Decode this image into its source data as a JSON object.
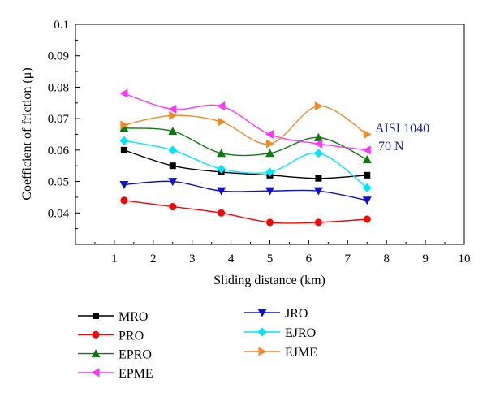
{
  "chart_data": {
    "type": "line",
    "xlabel": "Sliding distance (km)",
    "ylabel": "Coefficient of friction (μ)",
    "xlim": [
      0,
      10
    ],
    "ylim": [
      0.03,
      0.1
    ],
    "xticks": [
      "1",
      "2",
      "3",
      "4",
      "5",
      "6",
      "7",
      "8",
      "9",
      "10"
    ],
    "yticks": [
      "0.04",
      "0.05",
      "0.06",
      "0.07",
      "0.08",
      "0.09",
      "0.1"
    ],
    "grid": false,
    "legend_position": "bottom",
    "annotation_lines": [
      "AISI 1040",
      "70 N"
    ],
    "x": [
      1.25,
      2.5,
      3.75,
      5,
      6.25,
      7.5
    ],
    "series": [
      {
        "name": "MRO",
        "color": "#000000",
        "marker": "square",
        "values": [
          0.06,
          0.055,
          0.053,
          0.052,
          0.051,
          0.052
        ]
      },
      {
        "name": "PRO",
        "color": "#ff0000",
        "marker": "circle",
        "values": [
          0.044,
          0.042,
          0.04,
          0.037,
          0.037,
          0.038
        ]
      },
      {
        "name": "EPRO",
        "color": "#0a7a0a",
        "marker": "triangle-up",
        "values": [
          0.067,
          0.066,
          0.059,
          0.059,
          0.064,
          0.057
        ]
      },
      {
        "name": "EPME",
        "color": "#ff33ff",
        "marker": "triangle-left",
        "values": [
          0.078,
          0.073,
          0.074,
          0.065,
          0.062,
          0.06
        ]
      },
      {
        "name": "JRO",
        "color": "#1010d0",
        "marker": "triangle-down",
        "values": [
          0.049,
          0.05,
          0.047,
          0.047,
          0.047,
          0.044
        ]
      },
      {
        "name": "EJRO",
        "color": "#00e5ff",
        "marker": "diamond",
        "values": [
          0.063,
          0.06,
          0.054,
          0.053,
          0.059,
          0.048
        ]
      },
      {
        "name": "EJME",
        "color": "#f08a24",
        "marker": "triangle-right",
        "values": [
          0.068,
          0.071,
          0.069,
          0.062,
          0.074,
          0.065
        ]
      }
    ]
  }
}
